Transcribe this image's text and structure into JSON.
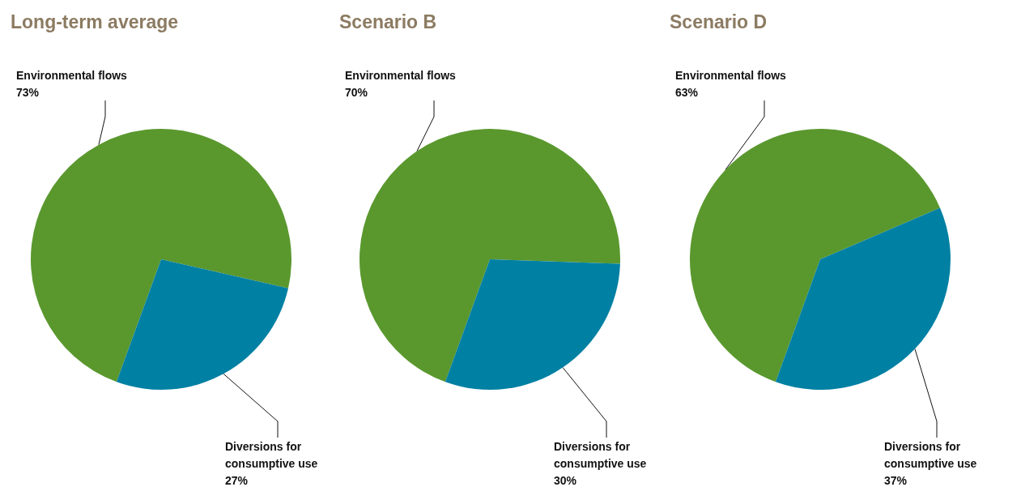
{
  "chart_data": [
    {
      "type": "pie",
      "title": "Long-term average",
      "categories": [
        "Environmental flows",
        "Diversions for consumptive use"
      ],
      "values": [
        73,
        27
      ],
      "value_labels": [
        "73%",
        "27%"
      ],
      "colors": [
        "#5a982e",
        "#0080a3"
      ]
    },
    {
      "type": "pie",
      "title": "Scenario B",
      "categories": [
        "Environmental flows",
        "Diversions for consumptive use"
      ],
      "values": [
        70,
        30
      ],
      "value_labels": [
        "70%",
        "30%"
      ],
      "colors": [
        "#5a982e",
        "#0080a3"
      ]
    },
    {
      "type": "pie",
      "title": "Scenario D",
      "categories": [
        "Environmental flows",
        "Diversions for consumptive use"
      ],
      "values": [
        63,
        37
      ],
      "value_labels": [
        "63%",
        "37%"
      ],
      "colors": [
        "#5a982e",
        "#0080a3"
      ]
    }
  ]
}
